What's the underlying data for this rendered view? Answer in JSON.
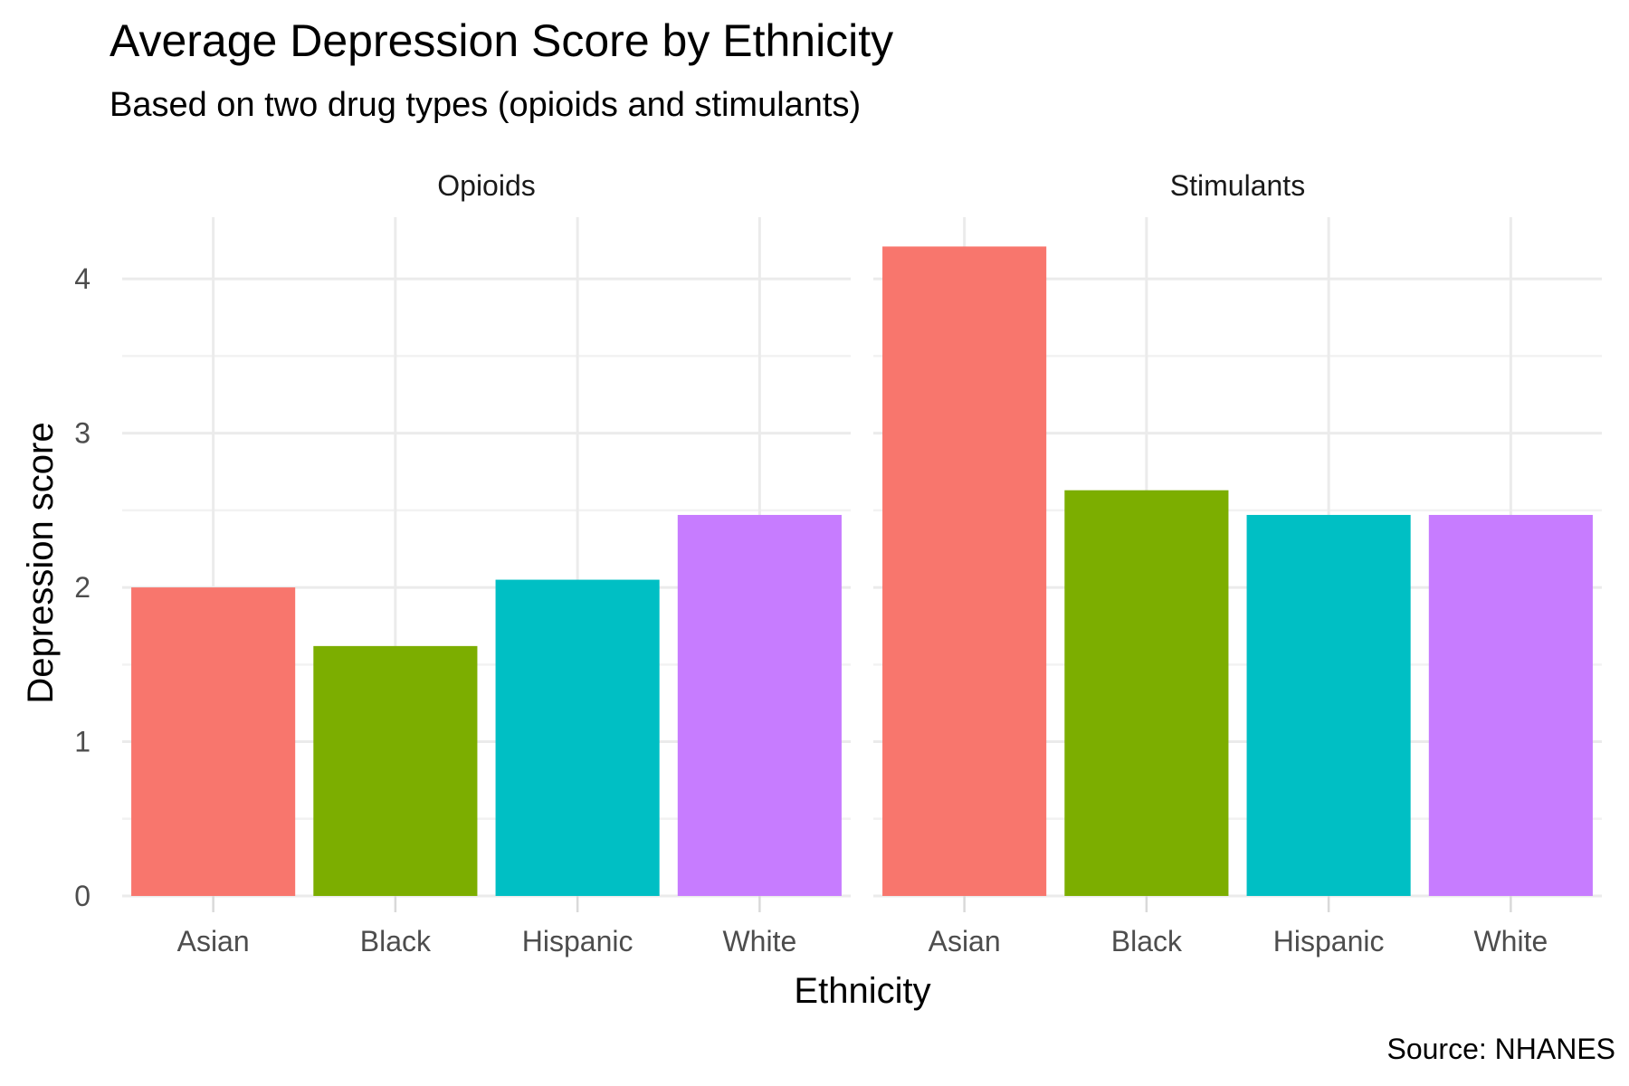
{
  "chart_data": {
    "type": "bar",
    "title": "Average Depression Score by Ethnicity",
    "subtitle": "Based on two drug types (opioids and stimulants)",
    "xlabel": "Ethnicity",
    "ylabel": "Depression score",
    "caption": "Source: NHANES",
    "ylim": [
      0,
      4.4
    ],
    "yticks": [
      "0",
      "1",
      "2",
      "3",
      "4"
    ],
    "grid": true,
    "legend": "none",
    "categories": [
      "Asian",
      "Black",
      "Hispanic",
      "White"
    ],
    "colors": [
      "#F8766D",
      "#7CAE00",
      "#00BFC4",
      "#C77CFF"
    ],
    "facets": [
      {
        "name": "Opioids",
        "values": [
          2.0,
          1.62,
          2.05,
          2.47
        ]
      },
      {
        "name": "Stimulants",
        "values": [
          4.21,
          2.63,
          2.47,
          2.47
        ]
      }
    ]
  }
}
